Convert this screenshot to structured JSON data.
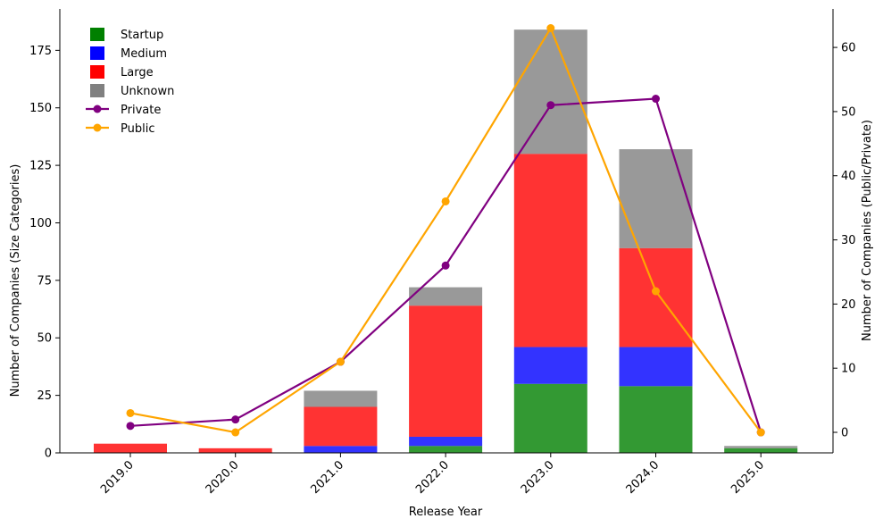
{
  "chart_data": {
    "type": "bar",
    "title": "",
    "xlabel": "Release Year",
    "ylabel": "Number of Companies (Size Categories)",
    "ylabel_right": "Number of Companies (Public/Private)",
    "categories": [
      "2019.0",
      "2020.0",
      "2021.0",
      "2022.0",
      "2023.0",
      "2024.0",
      "2025.0"
    ],
    "ylim": [
      0,
      193
    ],
    "ylim_right": [
      -3.2,
      66
    ],
    "yticks": [
      0,
      25,
      50,
      75,
      100,
      125,
      150,
      175
    ],
    "yticks_right": [
      0,
      10,
      20,
      30,
      40,
      50,
      60
    ],
    "legend_position": "top-left",
    "bar_series": [
      {
        "name": "Startup",
        "color": "#008000",
        "values": [
          0,
          0,
          0,
          3,
          30,
          29,
          2
        ]
      },
      {
        "name": "Medium",
        "color": "#0000ff",
        "values": [
          0,
          0,
          3,
          4,
          16,
          17,
          0
        ]
      },
      {
        "name": "Large",
        "color": "#ff0000",
        "values": [
          4,
          2,
          17,
          57,
          84,
          43,
          0
        ]
      },
      {
        "name": "Unknown",
        "color": "#808080",
        "values": [
          0,
          0,
          7,
          8,
          54,
          43,
          1
        ]
      }
    ],
    "line_series": [
      {
        "name": "Private",
        "color": "#800080",
        "values": [
          1,
          2,
          11,
          26,
          51,
          52,
          0
        ]
      },
      {
        "name": "Public",
        "color": "#ffa500",
        "values": [
          3,
          0,
          11,
          36,
          63,
          22,
          0
        ]
      }
    ]
  }
}
